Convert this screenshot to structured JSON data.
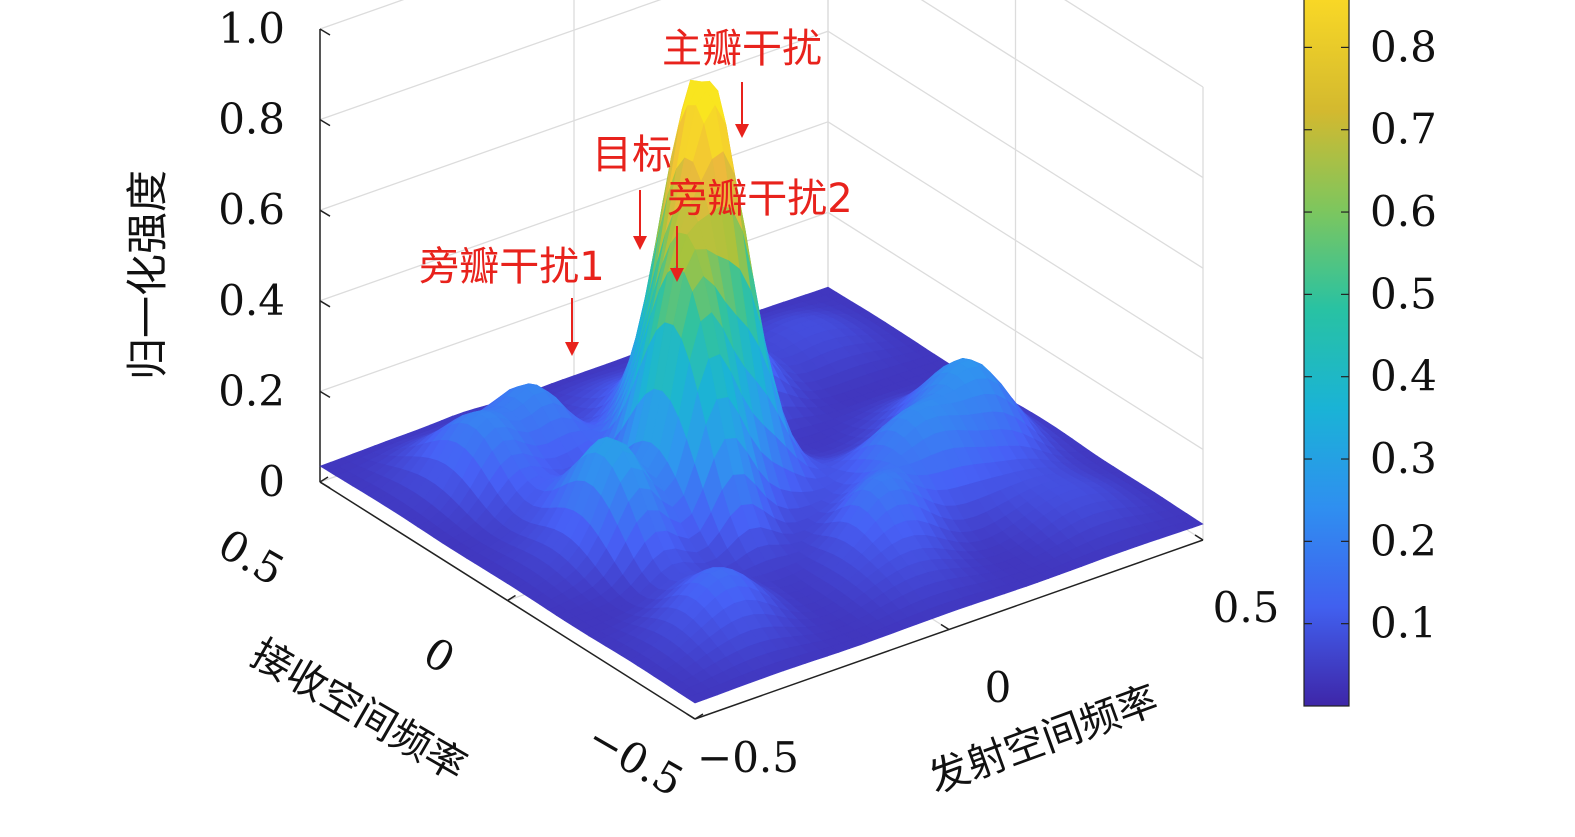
{
  "chart_data": {
    "type": "surface",
    "zlabel": "归一化强度",
    "xlabel": "发射空间频率",
    "ylabel": "接收空间频率",
    "xlim": [
      -0.5,
      0.5
    ],
    "ylim": [
      -0.5,
      0.5
    ],
    "zlim": [
      0,
      1.0
    ],
    "x_ticks": [
      "−0.5",
      "0",
      "0.5"
    ],
    "y_ticks": [
      "−0.5",
      "0",
      "0.5"
    ],
    "z_ticks": [
      "0",
      "0.2",
      "0.4",
      "0.6",
      "0.8",
      "1.0"
    ],
    "grid": true,
    "colormap": "parula",
    "colorbar": {
      "ticks": [
        "0.1",
        "0.2",
        "0.3",
        "0.4",
        "0.5",
        "0.6",
        "0.7",
        "0.8"
      ],
      "range": [
        0.0,
        0.86
      ],
      "placement": "right"
    },
    "peaks": [
      {
        "label": "主瓣干扰",
        "x": -0.02,
        "y": 0.12,
        "z": 0.75
      },
      {
        "label": "目标",
        "x": -0.15,
        "y": 0.0,
        "z": 0.52
      },
      {
        "label": "旁瓣干扰2",
        "x": -0.08,
        "y": 0.08,
        "z": 0.45
      },
      {
        "label": "旁瓣干扰1",
        "x": -0.3,
        "y": -0.02,
        "z": 0.26
      }
    ]
  },
  "colors": {
    "annotation": "#e8221c",
    "parula": [
      "#3e26a8",
      "#4760f6",
      "#2f97ef",
      "#1bb5d4",
      "#33c39c",
      "#a8c33c",
      "#f0ba3c",
      "#f9e51f"
    ]
  }
}
